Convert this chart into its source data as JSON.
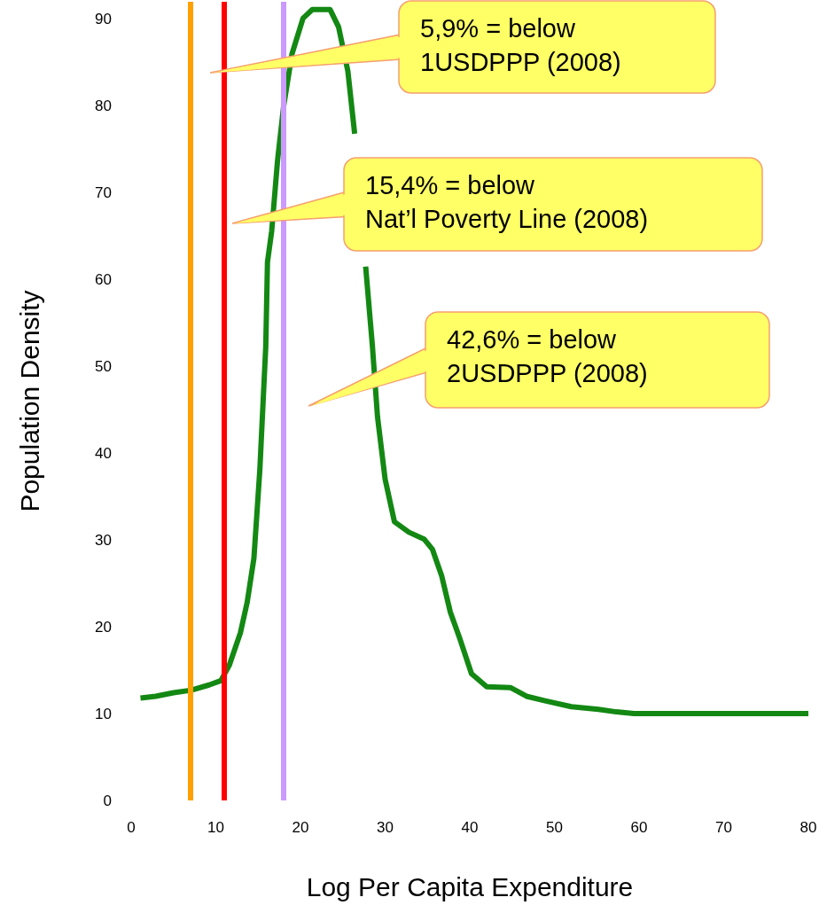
{
  "chart_data": {
    "type": "line",
    "xlabel": "Log Per Capita Expenditure",
    "ylabel": "Population Density",
    "x": [
      1.1,
      2.9,
      5.0,
      7.1,
      9.2,
      10.6,
      11.6,
      12.9,
      13.7,
      14.5,
      15.2,
      15.9,
      16.1,
      16.6,
      17.3,
      18.0,
      19.0,
      20.3,
      21.4,
      23.5,
      24.5,
      25.6,
      26.4,
      27.2,
      27.7,
      28.5,
      29.1,
      30.0,
      31.1,
      32.8,
      34.6,
      35.6,
      36.7,
      37.7,
      38.8,
      40.2,
      42.0,
      44.8,
      46.7,
      48.8,
      52.0,
      55.2,
      57.3,
      59.4,
      68.9,
      80
    ],
    "series": [
      {
        "color": "#138813",
        "values": [
          11.8,
          12.0,
          12.4,
          12.7,
          13.3,
          13.8,
          15.6,
          19.3,
          22.8,
          27.9,
          38.1,
          52.3,
          62,
          65.6,
          73.8,
          79.9,
          86,
          90.1,
          91.1,
          91.1,
          89.1,
          84,
          76.8,
          null,
          61.5,
          52.3,
          44.2,
          37,
          32.1,
          30.9,
          30.1,
          28.9,
          25.8,
          21.7,
          18.7,
          14.6,
          13.1,
          13.0,
          12.0,
          11.5,
          10.8,
          10.5,
          10.2,
          10,
          10,
          10
        ]
      }
    ],
    "xlim": [
      0,
      80
    ],
    "xticks": [
      0,
      10,
      20,
      30,
      40,
      50,
      60,
      70,
      80
    ],
    "ylim": [
      0,
      92
    ],
    "yticks": [
      0,
      10,
      20,
      30,
      40,
      50,
      60,
      70,
      80,
      90
    ],
    "ref_lines": [
      {
        "axis": "x",
        "value": 7,
        "color": "#ffa000"
      },
      {
        "axis": "x",
        "value": 11,
        "color": "#ff0000"
      },
      {
        "axis": "x",
        "value": 18,
        "color": "#cc99ff"
      }
    ],
    "annotations": [
      "5,9% = below\n1USDPPP (2008)",
      "15,4% = below\nNat’l Poverty Line (2008)",
      "42,6% = below\n2USDPPP (2008)"
    ],
    "grid": false,
    "marker": "none",
    "line_style": "solid"
  }
}
